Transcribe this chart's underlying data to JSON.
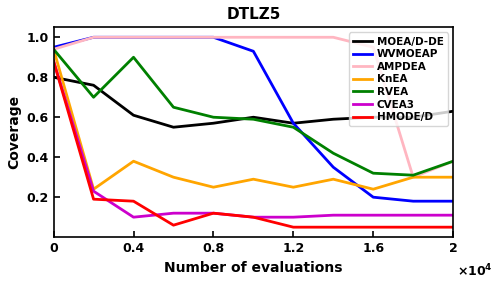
{
  "title": "DTLZ5",
  "xlabel": "Number of evaluations",
  "ylabel": "Coverage",
  "xlim": [
    0,
    20000
  ],
  "ylim": [
    0,
    1.05
  ],
  "xticks": [
    0,
    4000,
    8000,
    12000,
    16000,
    20000
  ],
  "xtick_labels": [
    "0",
    "0.4",
    "0.8",
    "1.2",
    "1.6",
    "2"
  ],
  "yticks": [
    0.2,
    0.4,
    0.6,
    0.8,
    1.0
  ],
  "series": {
    "MOEA/D-DE": {
      "color": "#000000",
      "lw": 2.0,
      "x": [
        0,
        2000,
        4000,
        6000,
        8000,
        10000,
        12000,
        14000,
        16000,
        18000,
        20000
      ],
      "y": [
        0.8,
        0.76,
        0.61,
        0.55,
        0.57,
        0.6,
        0.57,
        0.59,
        0.6,
        0.6,
        0.63
      ]
    },
    "WVMOEAP": {
      "color": "#0000ff",
      "lw": 2.0,
      "x": [
        0,
        2000,
        4000,
        6000,
        8000,
        10000,
        12000,
        14000,
        16000,
        18000,
        20000
      ],
      "y": [
        0.95,
        1.0,
        1.0,
        1.0,
        1.0,
        0.93,
        0.57,
        0.35,
        0.2,
        0.18,
        0.18
      ]
    },
    "AMPDEA": {
      "color": "#ffb6c1",
      "lw": 2.0,
      "x": [
        0,
        2000,
        4000,
        6000,
        8000,
        10000,
        12000,
        14000,
        16000,
        18000,
        20000
      ],
      "y": [
        0.94,
        1.0,
        1.0,
        1.0,
        1.0,
        1.0,
        1.0,
        1.0,
        0.95,
        0.3,
        0.38
      ]
    },
    "KnEA": {
      "color": "#ffa500",
      "lw": 2.0,
      "x": [
        0,
        2000,
        4000,
        6000,
        8000,
        10000,
        12000,
        14000,
        16000,
        18000,
        20000
      ],
      "y": [
        0.94,
        0.24,
        0.38,
        0.3,
        0.25,
        0.29,
        0.25,
        0.29,
        0.24,
        0.3,
        0.3
      ]
    },
    "RVEA": {
      "color": "#008000",
      "lw": 2.0,
      "x": [
        0,
        2000,
        4000,
        6000,
        8000,
        10000,
        12000,
        14000,
        16000,
        18000,
        20000
      ],
      "y": [
        0.94,
        0.7,
        0.9,
        0.65,
        0.6,
        0.59,
        0.55,
        0.42,
        0.32,
        0.31,
        0.38
      ]
    },
    "CVEA3": {
      "color": "#cc00cc",
      "lw": 2.0,
      "x": [
        0,
        2000,
        4000,
        6000,
        8000,
        10000,
        12000,
        14000,
        16000,
        18000,
        20000
      ],
      "y": [
        0.88,
        0.23,
        0.1,
        0.12,
        0.12,
        0.1,
        0.1,
        0.11,
        0.11,
        0.11,
        0.11
      ]
    },
    "HMODE/D": {
      "color": "#ff0000",
      "lw": 2.0,
      "x": [
        0,
        2000,
        4000,
        6000,
        8000,
        10000,
        12000,
        14000,
        16000,
        18000,
        20000
      ],
      "y": [
        0.88,
        0.19,
        0.18,
        0.06,
        0.12,
        0.1,
        0.05,
        0.05,
        0.05,
        0.05,
        0.05
      ]
    }
  },
  "legend": {
    "loc": "upper right",
    "fontsize": 7.5,
    "handlelength": 1.8,
    "borderpad": 0.4,
    "labelspacing": 0.25,
    "handletextpad": 0.5
  },
  "title_fontsize": 11,
  "label_fontsize": 10,
  "tick_fontsize": 9,
  "tick_fontweight": "bold",
  "label_fontweight": "bold",
  "title_fontweight": "bold"
}
